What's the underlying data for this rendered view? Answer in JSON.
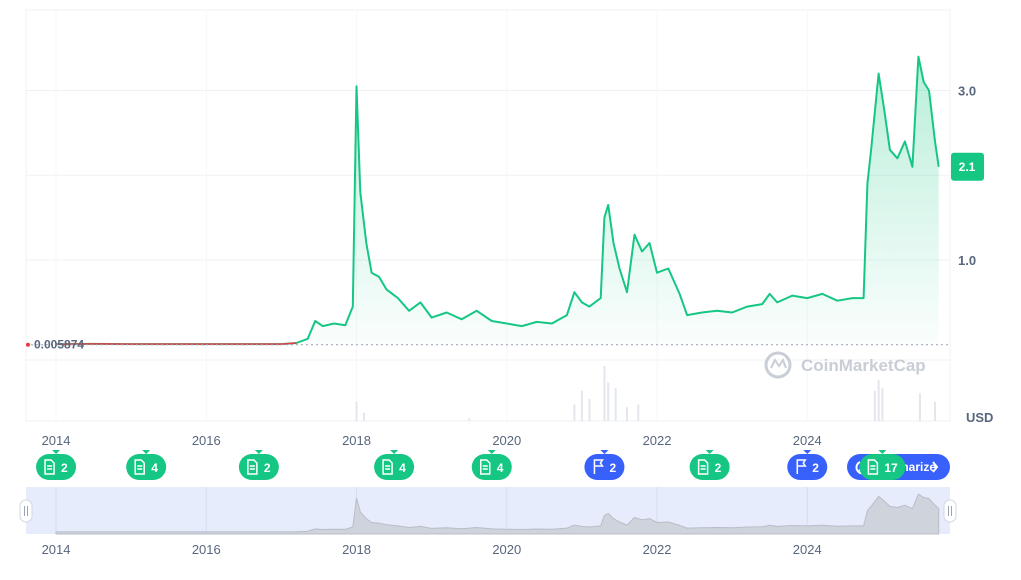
{
  "colors": {
    "up": "#16c784",
    "down": "#ea3943",
    "blue": "#3861fb",
    "grid": "#eff2f5",
    "axis": "#58667e",
    "navigator": "#e6ecfb"
  },
  "chart_data": {
    "type": "line",
    "currency": "USD",
    "current_price_label": "2.1",
    "reference_price_label": "0.005874",
    "ylim": [
      -0.9,
      3.95
    ],
    "y_ticks": [
      {
        "v": 1.0,
        "label": "1.0"
      },
      {
        "v": 2.0,
        "label": "2.0"
      },
      {
        "v": 3.0,
        "label": "3.0"
      }
    ],
    "x_range": [
      2013.6,
      2025.9
    ],
    "x_ticks": [
      {
        "v": 2014,
        "label": "2014"
      },
      {
        "v": 2016,
        "label": "2016"
      },
      {
        "v": 2018,
        "label": "2018"
      },
      {
        "v": 2020,
        "label": "2020"
      },
      {
        "v": 2022,
        "label": "2022"
      },
      {
        "v": 2024,
        "label": "2024"
      }
    ],
    "series": [
      {
        "points": [
          [
            2014.0,
            0.005
          ],
          [
            2014.5,
            0.01
          ],
          [
            2015.0,
            0.008
          ],
          [
            2015.5,
            0.007
          ],
          [
            2016.0,
            0.007
          ],
          [
            2016.5,
            0.007
          ],
          [
            2017.0,
            0.008
          ],
          [
            2017.2,
            0.02
          ],
          [
            2017.35,
            0.07
          ],
          [
            2017.45,
            0.28
          ],
          [
            2017.55,
            0.22
          ],
          [
            2017.7,
            0.25
          ],
          [
            2017.85,
            0.23
          ],
          [
            2017.95,
            0.45
          ],
          [
            2018.0,
            3.05
          ],
          [
            2018.05,
            1.8
          ],
          [
            2018.13,
            1.2
          ],
          [
            2018.2,
            0.85
          ],
          [
            2018.3,
            0.8
          ],
          [
            2018.4,
            0.65
          ],
          [
            2018.55,
            0.55
          ],
          [
            2018.7,
            0.4
          ],
          [
            2018.85,
            0.5
          ],
          [
            2019.0,
            0.32
          ],
          [
            2019.2,
            0.38
          ],
          [
            2019.4,
            0.3
          ],
          [
            2019.6,
            0.4
          ],
          [
            2019.8,
            0.28
          ],
          [
            2020.0,
            0.25
          ],
          [
            2020.2,
            0.22
          ],
          [
            2020.4,
            0.27
          ],
          [
            2020.6,
            0.25
          ],
          [
            2020.8,
            0.35
          ],
          [
            2020.9,
            0.62
          ],
          [
            2021.0,
            0.5
          ],
          [
            2021.1,
            0.45
          ],
          [
            2021.25,
            0.55
          ],
          [
            2021.3,
            1.5
          ],
          [
            2021.35,
            1.65
          ],
          [
            2021.42,
            1.2
          ],
          [
            2021.5,
            0.9
          ],
          [
            2021.6,
            0.62
          ],
          [
            2021.7,
            1.3
          ],
          [
            2021.8,
            1.1
          ],
          [
            2021.9,
            1.2
          ],
          [
            2022.0,
            0.85
          ],
          [
            2022.15,
            0.9
          ],
          [
            2022.3,
            0.6
          ],
          [
            2022.4,
            0.35
          ],
          [
            2022.6,
            0.38
          ],
          [
            2022.8,
            0.4
          ],
          [
            2023.0,
            0.38
          ],
          [
            2023.2,
            0.45
          ],
          [
            2023.4,
            0.48
          ],
          [
            2023.5,
            0.6
          ],
          [
            2023.6,
            0.5
          ],
          [
            2023.8,
            0.58
          ],
          [
            2024.0,
            0.55
          ],
          [
            2024.2,
            0.6
          ],
          [
            2024.4,
            0.52
          ],
          [
            2024.6,
            0.55
          ],
          [
            2024.75,
            0.55
          ],
          [
            2024.8,
            1.9
          ],
          [
            2024.85,
            2.3
          ],
          [
            2024.95,
            3.2
          ],
          [
            2025.02,
            2.8
          ],
          [
            2025.1,
            2.3
          ],
          [
            2025.2,
            2.2
          ],
          [
            2025.3,
            2.4
          ],
          [
            2025.4,
            2.1
          ],
          [
            2025.48,
            3.4
          ],
          [
            2025.55,
            3.1
          ],
          [
            2025.62,
            3.0
          ],
          [
            2025.7,
            2.4
          ],
          [
            2025.75,
            2.1
          ]
        ]
      }
    ],
    "volume": [
      [
        2018.0,
        0.35
      ],
      [
        2018.1,
        0.15
      ],
      [
        2019.5,
        0.05
      ],
      [
        2020.9,
        0.3
      ],
      [
        2021.0,
        0.55
      ],
      [
        2021.1,
        0.4
      ],
      [
        2021.3,
        1.0
      ],
      [
        2021.35,
        0.7
      ],
      [
        2021.45,
        0.6
      ],
      [
        2021.6,
        0.25
      ],
      [
        2021.75,
        0.3
      ],
      [
        2024.9,
        0.55
      ],
      [
        2024.95,
        0.75
      ],
      [
        2025.0,
        0.6
      ],
      [
        2025.5,
        0.5
      ],
      [
        2025.7,
        0.35
      ]
    ]
  },
  "events": [
    {
      "x": 2014.0,
      "type": "doc",
      "count": "2",
      "color": "#16c784"
    },
    {
      "x": 2015.2,
      "type": "doc",
      "count": "4",
      "color": "#16c784"
    },
    {
      "x": 2016.7,
      "type": "doc",
      "count": "2",
      "color": "#16c784"
    },
    {
      "x": 2018.5,
      "type": "doc",
      "count": "4",
      "color": "#16c784"
    },
    {
      "x": 2019.8,
      "type": "doc",
      "count": "4",
      "color": "#16c784"
    },
    {
      "x": 2021.3,
      "type": "flag",
      "count": "2",
      "color": "#3861fb"
    },
    {
      "x": 2022.7,
      "type": "doc",
      "count": "2",
      "color": "#16c784"
    },
    {
      "x": 2024.0,
      "type": "flag",
      "count": "2",
      "color": "#3861fb"
    },
    {
      "x": 2025.0,
      "type": "doc",
      "count": "17",
      "color": "#16c784"
    }
  ],
  "summarize_button": {
    "label": "Summarize"
  },
  "watermark": {
    "label": "CoinMarketCap"
  },
  "navigator": {
    "x_ticks": [
      "2014",
      "2016",
      "2018",
      "2020",
      "2022",
      "2024"
    ]
  },
  "icons": {
    "event_doc": "document-icon",
    "event_flag": "flag-icon",
    "logo": "coinmarketcap-logo-icon",
    "ai": "ai-sparkle-icon",
    "chevron": "chevron-right-icon",
    "handle": "grip-handle-icon"
  }
}
